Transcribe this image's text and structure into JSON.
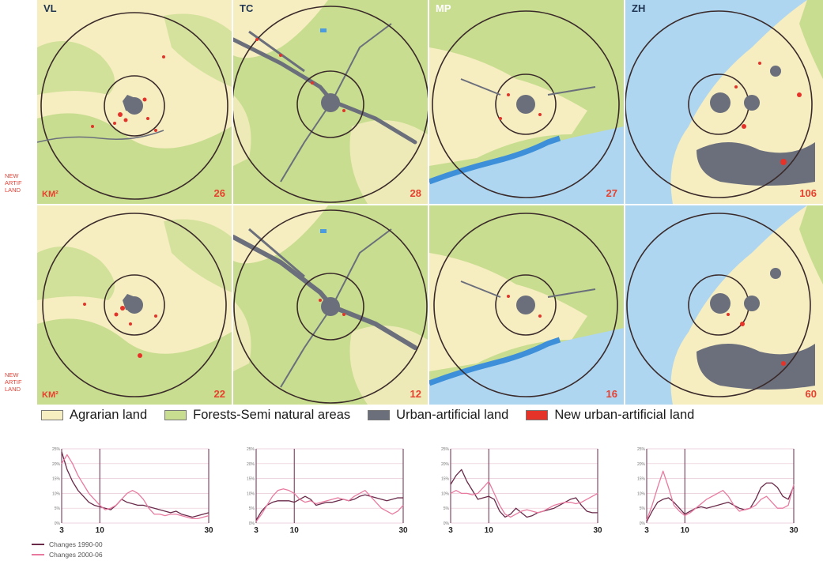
{
  "side_labels": [
    "NEW ARTIF LAND",
    "NEW ARTIF LAND"
  ],
  "maps": {
    "row1": [
      {
        "code": "VL",
        "unit": "KM²",
        "value": "26"
      },
      {
        "code": "TC",
        "unit": "",
        "value": "28"
      },
      {
        "code": "MP",
        "unit": "",
        "value": "27"
      },
      {
        "code": "ZH",
        "unit": "",
        "value": "106"
      }
    ],
    "row2": [
      {
        "code": "",
        "unit": "KM²",
        "value": "22"
      },
      {
        "code": "",
        "unit": "",
        "value": "12"
      },
      {
        "code": "",
        "unit": "",
        "value": "16"
      },
      {
        "code": "",
        "unit": "",
        "value": "60"
      }
    ]
  },
  "legend": [
    {
      "label": "Agrarian land",
      "color": "#f6edc0"
    },
    {
      "label": "Forests-Semi natural areas",
      "color": "#c8dd8f"
    },
    {
      "label": "Urban-artificial land",
      "color": "#6b6f7c"
    },
    {
      "label": "New urban-artificial land",
      "color": "#e5332a"
    }
  ],
  "chart_data": [
    {
      "type": "line",
      "x": [
        3,
        4,
        5,
        6,
        7,
        8,
        9,
        10,
        11,
        12,
        13,
        14,
        15,
        16,
        17,
        18,
        19,
        20,
        21,
        22,
        23,
        24,
        25,
        26,
        27,
        28,
        29,
        30
      ],
      "x_tick_labels": [
        "3",
        "10",
        "30"
      ],
      "y_tick_labels": [
        "25%",
        "20%",
        "15%",
        "10%",
        "5%",
        "0%"
      ],
      "ylim": [
        0,
        25
      ],
      "series": [
        {
          "name": "Changes 1990-00",
          "color": "#6a2a4a",
          "values": [
            24,
            18,
            14,
            11,
            9,
            7,
            6,
            5.5,
            5,
            4.5,
            6,
            8,
            7,
            6.5,
            6,
            6,
            5.5,
            5,
            4.5,
            4,
            3.5,
            4,
            3,
            2.5,
            2,
            2.5,
            3,
            3.5
          ]
        },
        {
          "name": "Changes 2000-06",
          "color": "#e87aa0",
          "values": [
            20,
            23,
            20,
            16,
            13,
            10,
            8,
            6,
            4.5,
            5,
            6,
            8,
            10,
            11,
            10,
            8,
            5,
            3,
            3,
            2.5,
            3,
            3,
            2.5,
            2,
            1.5,
            1.5,
            2,
            2.5
          ]
        }
      ]
    },
    {
      "type": "line",
      "x": [
        3,
        4,
        5,
        6,
        7,
        8,
        9,
        10,
        11,
        12,
        13,
        14,
        15,
        16,
        17,
        18,
        19,
        20,
        21,
        22,
        23,
        24,
        25,
        26,
        27,
        28,
        29,
        30
      ],
      "x_tick_labels": [
        "3",
        "10",
        "30"
      ],
      "y_tick_labels": [
        "25%",
        "20%",
        "15%",
        "10%",
        "5%",
        "0%"
      ],
      "ylim": [
        0,
        25
      ],
      "series": [
        {
          "name": "Changes 1990-00",
          "color": "#6a2a4a",
          "values": [
            1,
            4,
            6,
            7,
            7.5,
            7.5,
            7.5,
            7,
            8,
            9,
            8,
            6,
            6.5,
            7,
            7,
            7.5,
            8,
            7.5,
            8,
            9,
            9.5,
            9,
            8.5,
            8,
            7.5,
            8,
            8.5,
            8.5
          ]
        },
        {
          "name": "Changes 2000-06",
          "color": "#e87aa0",
          "values": [
            0.5,
            3,
            6,
            9,
            11,
            11.5,
            11,
            10,
            8,
            7,
            7.5,
            6.5,
            7,
            7.5,
            8,
            8.5,
            8,
            7.5,
            9,
            10,
            11,
            9,
            7,
            5,
            4,
            3,
            4,
            6
          ]
        }
      ]
    },
    {
      "type": "line",
      "x": [
        3,
        4,
        5,
        6,
        7,
        8,
        9,
        10,
        11,
        12,
        13,
        14,
        15,
        16,
        17,
        18,
        19,
        20,
        21,
        22,
        23,
        24,
        25,
        26,
        27,
        28,
        29,
        30
      ],
      "x_tick_labels": [
        "3",
        "10",
        "30"
      ],
      "y_tick_labels": [
        "25%",
        "20%",
        "15%",
        "10%",
        "5%",
        "0%"
      ],
      "ylim": [
        0,
        25
      ],
      "series": [
        {
          "name": "Changes 1990-00",
          "color": "#6a2a4a",
          "values": [
            13,
            16,
            18,
            14,
            11,
            8,
            8.5,
            9,
            8,
            4,
            2,
            3,
            5,
            3.5,
            2,
            2.5,
            3.5,
            4,
            4.5,
            5,
            6,
            7,
            8,
            8.5,
            6,
            4,
            3.5,
            3.5
          ]
        },
        {
          "name": "Changes 2000-06",
          "color": "#e87aa0",
          "values": [
            10,
            11,
            10,
            10,
            9.5,
            10,
            12,
            14,
            10,
            6,
            3,
            2,
            3,
            4,
            4.5,
            4,
            3.5,
            4,
            5,
            6,
            6.5,
            7,
            7,
            6.5,
            7,
            8,
            9,
            10
          ]
        }
      ]
    },
    {
      "type": "line",
      "x": [
        3,
        4,
        5,
        6,
        7,
        8,
        9,
        10,
        11,
        12,
        13,
        14,
        15,
        16,
        17,
        18,
        19,
        20,
        21,
        22,
        23,
        24,
        25,
        26,
        27,
        28,
        29,
        30
      ],
      "x_tick_labels": [
        "3",
        "10",
        "30"
      ],
      "y_tick_labels": [
        "25%",
        "20%",
        "15%",
        "10%",
        "5%",
        "0%"
      ],
      "ylim": [
        0,
        25
      ],
      "series": [
        {
          "name": "Changes 1990-00",
          "color": "#6a2a4a",
          "values": [
            0.5,
            4,
            7,
            8,
            8.5,
            7,
            5,
            3,
            4,
            5,
            5.5,
            5,
            5.5,
            6,
            6.5,
            7,
            6,
            5,
            4.5,
            5,
            8,
            12,
            13.5,
            13.5,
            12,
            9,
            8,
            12.5
          ]
        },
        {
          "name": "Changes 2000-06",
          "color": "#e87aa0",
          "values": [
            1,
            6,
            12,
            17.5,
            12,
            6,
            4,
            2.5,
            3.5,
            5,
            6.5,
            8,
            9,
            10,
            11,
            9,
            6,
            4,
            4.5,
            5,
            6,
            8,
            9,
            7,
            5,
            5,
            6,
            13
          ]
        }
      ]
    }
  ],
  "series_legend": [
    {
      "label": "Changes 1990-00",
      "color": "#6a2a4a"
    },
    {
      "label": "Changes 2000-06",
      "color": "#e87aa0"
    }
  ]
}
